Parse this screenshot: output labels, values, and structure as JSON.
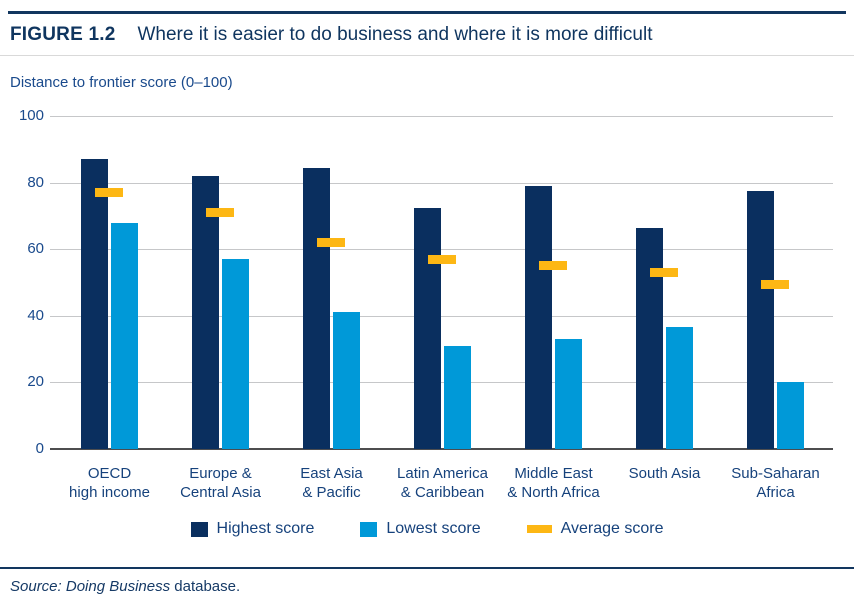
{
  "page": {
    "figure_label": "FIGURE 1.2",
    "figure_title": "Where it is easier to do business and where it is more difficult",
    "axis_caption": "Distance to frontier score (0–100)",
    "source_italic": "Source: Doing Business",
    "source_regular": " database."
  },
  "colors": {
    "navy_bar": "#0a2f5f",
    "light_blue_bar": "#0099d8",
    "yellow_dash": "#fdb714",
    "text_navy": "#16427c",
    "gridline_gray": "#c6c7c9",
    "baseline_gray": "#4d4d4f",
    "rule_navy": "#12365f"
  },
  "chart_data": {
    "type": "bar",
    "title": "Where it is easier to do business and where it is more difficult",
    "ylabel": "Distance to frontier score (0–100)",
    "ylim": [
      0,
      100
    ],
    "yticks": [
      0,
      20,
      40,
      60,
      80,
      100
    ],
    "grid": true,
    "legend_position": "bottom",
    "categories": [
      "OECD high income",
      "Europe & Central Asia",
      "East Asia & Pacific",
      "Latin America & Caribbean",
      "Middle East & North Africa",
      "South Asia",
      "Sub-Saharan Africa"
    ],
    "category_lines": [
      [
        "OECD",
        "high income"
      ],
      [
        "Europe &",
        "Central Asia"
      ],
      [
        "East Asia",
        "& Pacific"
      ],
      [
        "Latin America",
        "& Caribbean"
      ],
      [
        "Middle East",
        "& North Africa"
      ],
      [
        "South Asia"
      ],
      [
        "Sub-Saharan",
        "Africa"
      ]
    ],
    "series": [
      {
        "name": "Highest score",
        "mark": "bar",
        "color": "#0a2f5f",
        "values": [
          87,
          82,
          84.5,
          72.5,
          79,
          66.5,
          77.5
        ]
      },
      {
        "name": "Lowest score",
        "mark": "bar",
        "color": "#0099d8",
        "values": [
          68,
          57,
          41,
          31,
          33,
          36.5,
          20
        ]
      },
      {
        "name": "Average score",
        "mark": "dash",
        "color": "#fdb714",
        "values": [
          77,
          71,
          62,
          57,
          55,
          53,
          49.5
        ]
      }
    ]
  }
}
